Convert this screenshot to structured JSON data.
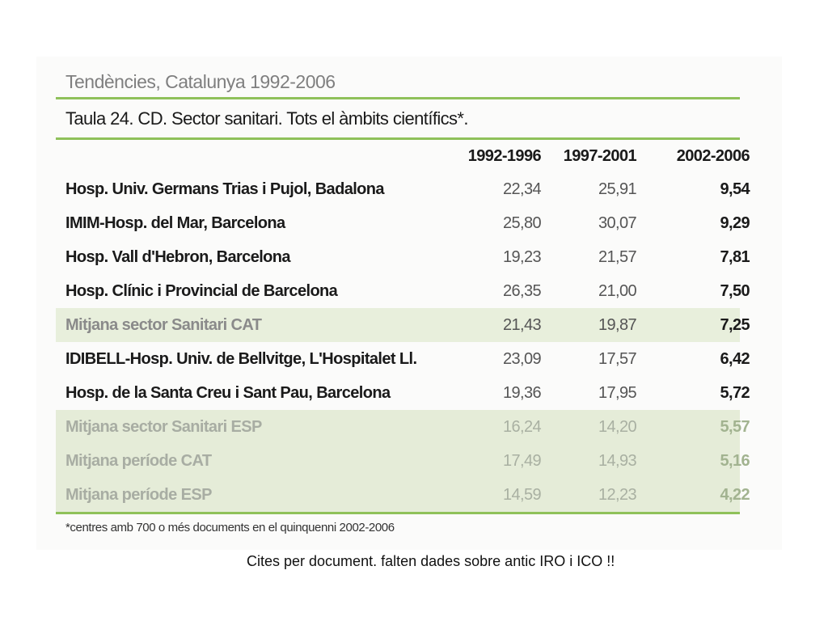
{
  "super_title": "Tendències, Catalunya 1992-2006",
  "table_title": "Taula 24.  CD. Sector sanitari. Tots el àmbits científics*.",
  "columns": [
    "1992-1996",
    "1997-2001",
    "2002-2006"
  ],
  "rows": [
    {
      "name": "Hosp. Univ. Germans Trias i Pujol, Badalona",
      "v1": "22,34",
      "v2": "25,91",
      "v3": "9,54"
    },
    {
      "name": "IMIM-Hosp. del Mar, Barcelona",
      "v1": "25,80",
      "v2": "30,07",
      "v3": "9,29"
    },
    {
      "name": "Hosp. Vall d'Hebron, Barcelona",
      "v1": "19,23",
      "v2": "21,57",
      "v3": "7,81"
    },
    {
      "name": "Hosp. Clínic i Provincial de Barcelona",
      "v1": "26,35",
      "v2": "21,00",
      "v3": "7,50"
    },
    {
      "name": "Mitjana sector Sanitari CAT",
      "v1": "21,43",
      "v2": "19,87",
      "v3": "7,25"
    },
    {
      "name": "IDIBELL-Hosp. Univ. de Bellvitge, L'Hospitalet Ll.",
      "v1": "23,09",
      "v2": "17,57",
      "v3": "6,42"
    },
    {
      "name": "Hosp. de la Santa Creu i Sant Pau, Barcelona",
      "v1": "19,36",
      "v2": "17,95",
      "v3": "5,72"
    },
    {
      "name": "Mitjana sector Sanitari ESP",
      "v1": "16,24",
      "v2": "14,20",
      "v3": "5,57"
    },
    {
      "name": "Mitjana període CAT",
      "v1": "17,49",
      "v2": "14,93",
      "v3": "5,16"
    },
    {
      "name": "Mitjana període ESP",
      "v1": "14,59",
      "v2": "12,23",
      "v3": "4,22"
    }
  ],
  "footnote": "*centres amb 700 o més documents en el quinquenni 2002-2006",
  "caption": "Cites per document. falten dades sobre antic IRO i ICO !!"
}
